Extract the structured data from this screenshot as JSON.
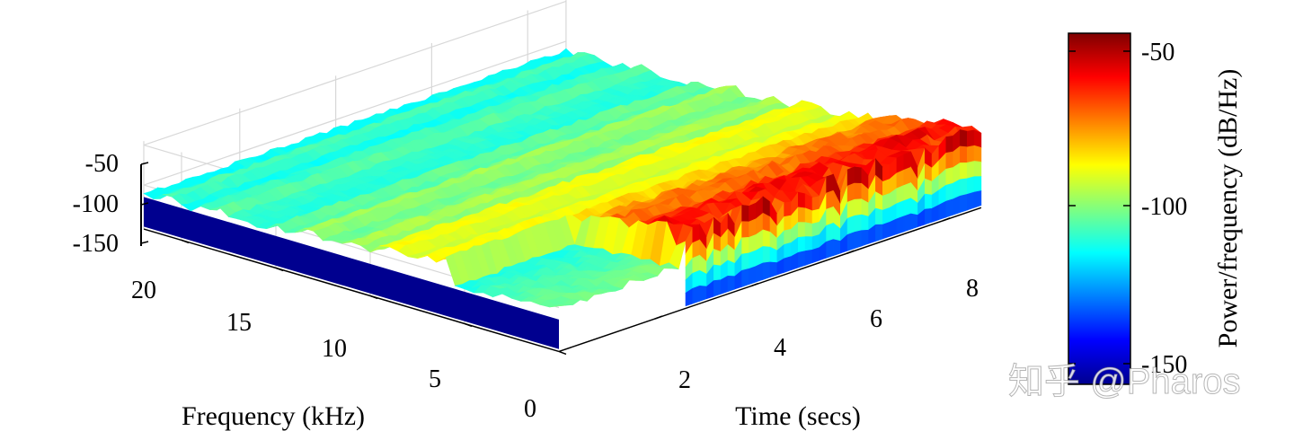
{
  "chart_data": {
    "type": "surface",
    "title": "",
    "xlabel": "Time (secs)",
    "ylabel": "Frequency (kHz)",
    "zlabel": "",
    "colorbar_label": "Power/frequency (dB/Hz)",
    "x_ticks": [
      "2",
      "4",
      "6",
      "8"
    ],
    "y_ticks": [
      "0",
      "5",
      "10",
      "15",
      "20"
    ],
    "z_ticks": [
      "-50",
      "-100",
      "-150"
    ],
    "colorbar_ticks": [
      "-50",
      "-100",
      "-150"
    ],
    "xlim": [
      0,
      8.8
    ],
    "ylim": [
      0,
      22
    ],
    "zlim": [
      -155,
      -45
    ],
    "clim": [
      -155,
      -45
    ],
    "colormap": "jet",
    "grid": true,
    "surface_trend": {
      "frequency_kHz": [
        0,
        2,
        5,
        10,
        15,
        20,
        22
      ],
      "mean_power_dB_per_Hz": [
        -55,
        -65,
        -80,
        -95,
        -105,
        -110,
        -112
      ],
      "low_freq_onset_time_secs": 2.5,
      "floor_dB_per_Hz": -152
    }
  },
  "watermark": "知乎 @Pharos"
}
